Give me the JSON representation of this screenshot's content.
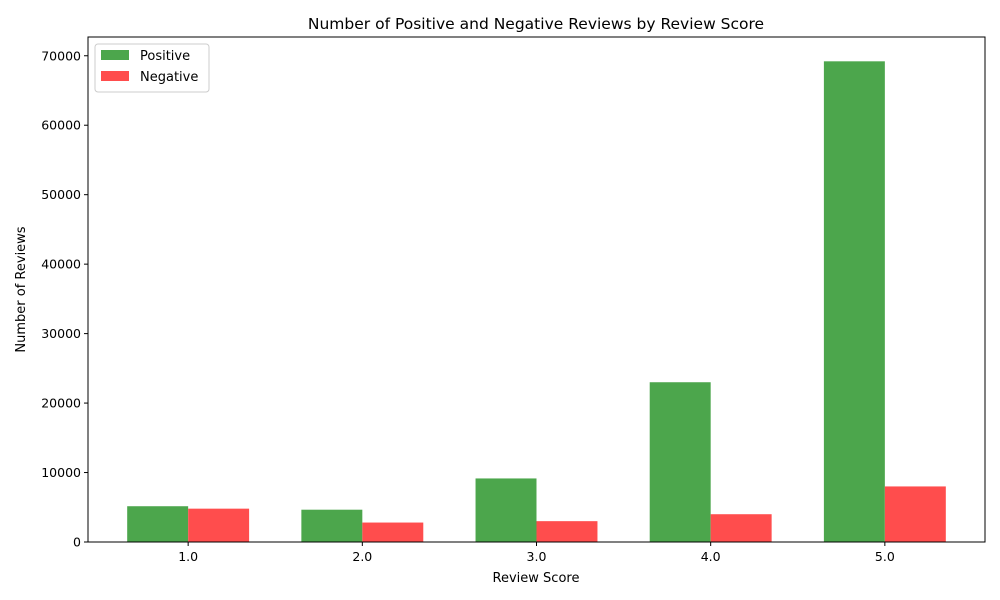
{
  "chart_data": {
    "type": "bar",
    "title": "Number of Positive and Negative Reviews by Review Score",
    "xlabel": "Review Score",
    "ylabel": "Number of Reviews",
    "categories": [
      "1.0",
      "2.0",
      "3.0",
      "4.0",
      "5.0"
    ],
    "series": [
      {
        "name": "Positive",
        "color": "#4ca64c",
        "values": [
          5150,
          4650,
          9150,
          23000,
          69200
        ]
      },
      {
        "name": "Negative",
        "color": "#ff4d4d",
        "values": [
          4800,
          2800,
          3000,
          4000,
          8000
        ]
      }
    ],
    "ylim": [
      0,
      72700
    ],
    "yticks": [
      0,
      10000,
      20000,
      30000,
      40000,
      50000,
      60000,
      70000
    ],
    "grid": false,
    "legend_position": "top-left"
  }
}
